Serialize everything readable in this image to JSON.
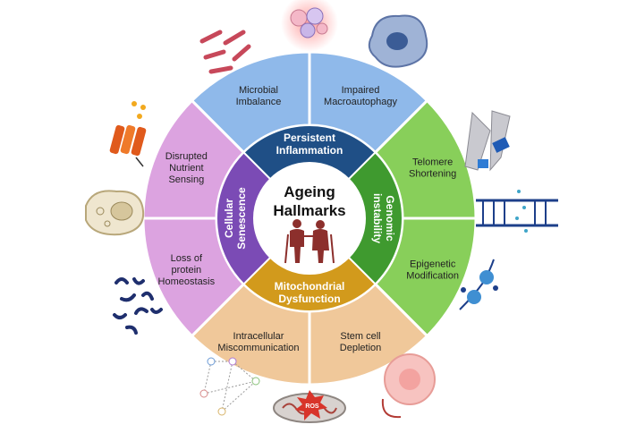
{
  "title": {
    "line1": "Ageing",
    "line2": "Hallmarks"
  },
  "inner_ring": [
    {
      "lines": [
        "Persistent",
        "Inflammation"
      ],
      "color": "#1f4f86"
    },
    {
      "lines": [
        "Genomic",
        "instability"
      ],
      "color": "#3f9a2f"
    },
    {
      "lines": [
        "Mitochondrial",
        "Dysfunction"
      ],
      "color": "#d29a1c"
    },
    {
      "lines": [
        "Cellular",
        "Senescence"
      ],
      "color": "#7b4bb5"
    }
  ],
  "outer_ring": [
    {
      "lines": [
        "Microbial",
        "Imbalance"
      ],
      "color": "#8fb9ea"
    },
    {
      "lines": [
        "Impaired",
        "Macroautophagy"
      ],
      "color": "#8fb9ea"
    },
    {
      "lines": [
        "Telomere",
        "Shortening"
      ],
      "color": "#88cf5a"
    },
    {
      "lines": [
        "Epigenetic",
        "Modification"
      ],
      "color": "#88cf5a"
    },
    {
      "lines": [
        "Stem cell",
        "Depletion"
      ],
      "color": "#f0c89a"
    },
    {
      "lines": [
        "Intracellular",
        "Miscommunication"
      ],
      "color": "#f0c89a"
    },
    {
      "lines": [
        "Loss of",
        "protein",
        "Homeostasis"
      ],
      "color": "#dca3e0"
    },
    {
      "lines": [
        "Disrupted",
        "Nutrient",
        "Sensing"
      ],
      "color": "#dca3e0"
    }
  ],
  "icons": {
    "ros_label": "ROS"
  }
}
